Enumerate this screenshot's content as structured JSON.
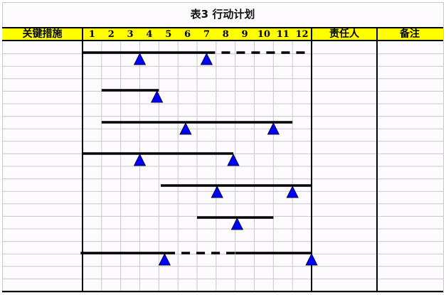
{
  "title": "表3  行动计划",
  "header": {
    "measures": "关键措施",
    "months": [
      "1",
      "2",
      "3",
      "4",
      "5",
      "6",
      "7",
      "8",
      "9",
      "10",
      "11",
      "12"
    ],
    "owner": "责任人",
    "remarks": "备注"
  },
  "colors": {
    "header_bg": "#ffff00",
    "milestone": "#0000ff",
    "bar": "#000000",
    "grid": "#c8c8c8"
  },
  "plan": [
    {
      "segments": [
        {
          "from": 0,
          "to": 6.5,
          "style": "solid"
        },
        {
          "from": 6.5,
          "to": 12,
          "style": "dashed"
        }
      ],
      "milestones": [
        3.0,
        6.5
      ]
    },
    {
      "segments": [
        {
          "from": 1,
          "to": 4,
          "style": "solid"
        }
      ],
      "milestones": [
        3.9
      ]
    },
    {
      "segments": [
        {
          "from": 1,
          "to": 11,
          "style": "solid"
        }
      ],
      "milestones": [
        5.4,
        10
      ]
    },
    {
      "segments": [
        {
          "from": 0,
          "to": 7.9,
          "style": "solid"
        }
      ],
      "milestones": [
        3.0,
        7.9
      ]
    },
    {
      "segments": [
        {
          "from": 4.1,
          "to": 12,
          "style": "solid"
        }
      ],
      "milestones": [
        7.05,
        11
      ]
    },
    {
      "segments": [
        {
          "from": 6,
          "to": 10,
          "style": "solid"
        }
      ],
      "milestones": [
        8.1
      ]
    },
    {
      "segments": [
        {
          "from": -0.1,
          "to": 4.4,
          "style": "solid"
        },
        {
          "from": 4.4,
          "to": 8,
          "style": "dashed"
        },
        {
          "from": 8,
          "to": 12,
          "style": "solid"
        }
      ],
      "milestones": [
        4.3,
        12
      ]
    }
  ]
}
